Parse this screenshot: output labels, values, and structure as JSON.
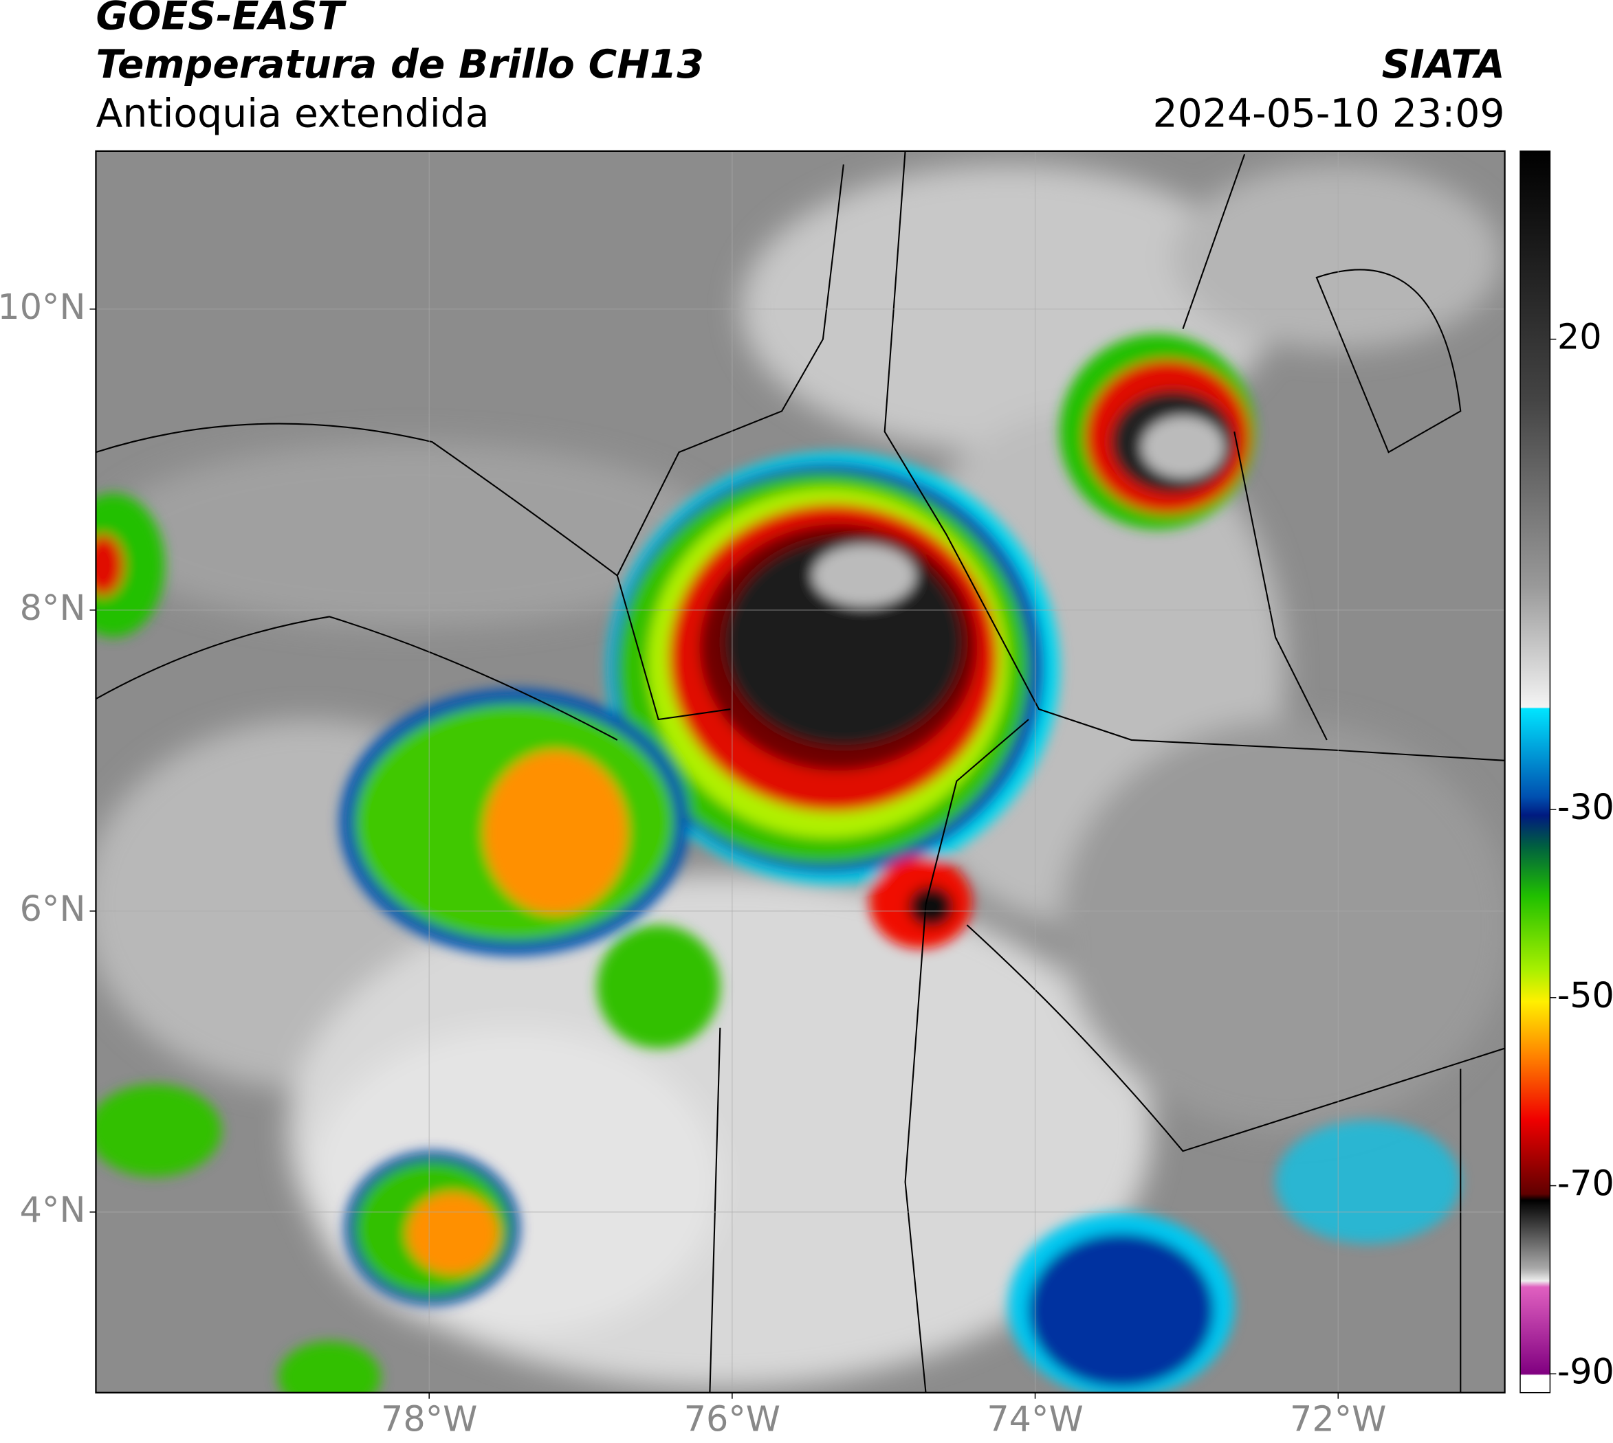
{
  "header": {
    "line1": "GOES-EAST",
    "line2": "Temperatura de Brillo CH13",
    "line3": "Antioquia extendida",
    "source": "SIATA",
    "datetime": "2024-05-10 23:09"
  },
  "map": {
    "lonlim": [
      -80.2,
      -70.9
    ],
    "latlim": [
      2.8,
      11.05
    ],
    "lonticks": [
      {
        "value": -78,
        "label": "78°W"
      },
      {
        "value": -76,
        "label": "76°W"
      },
      {
        "value": -74,
        "label": "74°W"
      },
      {
        "value": -72,
        "label": "72°W"
      }
    ],
    "latticks": [
      {
        "value": 10,
        "label": "10°N"
      },
      {
        "value": 8,
        "label": "8°N"
      },
      {
        "value": 6,
        "label": "6°N"
      },
      {
        "value": 4,
        "label": "4°N"
      }
    ],
    "grid": true
  },
  "colorbar": {
    "lim": [
      -92,
      40
    ],
    "ticks": [
      20,
      -30,
      -50,
      -70,
      -90
    ]
  }
}
